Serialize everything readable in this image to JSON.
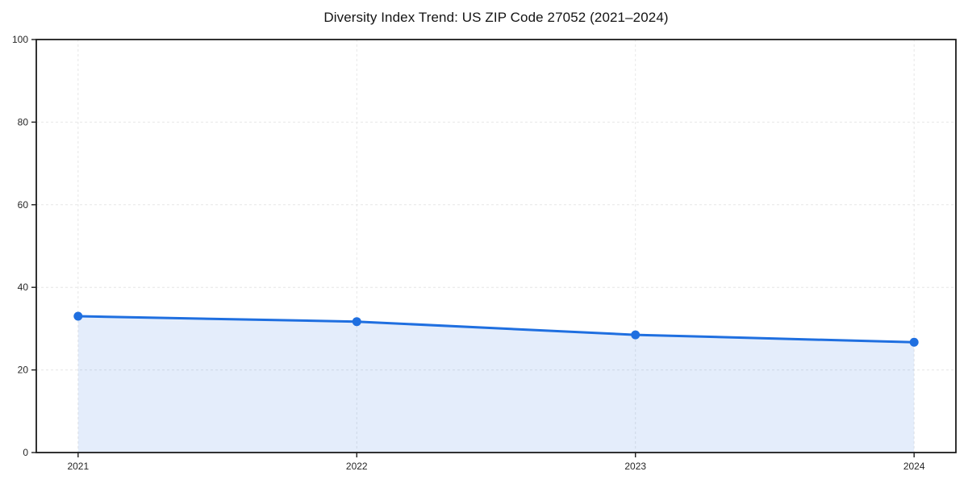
{
  "chart_data": {
    "type": "line",
    "title": "Diversity Index Trend: US ZIP Code 27052 (2021–2024)",
    "x_tick_labels": [
      "2021",
      "2022",
      "2023",
      "2024"
    ],
    "x": [
      2021,
      2022,
      2023,
      2024
    ],
    "values": [
      33.0,
      31.7,
      28.5,
      26.7
    ],
    "y_ticks": [
      0,
      20,
      40,
      60,
      80,
      100
    ],
    "y_tick_labels": [
      "0",
      "20",
      "40",
      "60",
      "80",
      "100"
    ],
    "ylim": [
      0,
      100
    ],
    "xlim": [
      2020.85,
      2024.15
    ],
    "xlabel": "",
    "ylabel": "",
    "legend": "none",
    "grid": {
      "visible": true,
      "style": "dashed",
      "color": "#e6e6e6"
    },
    "style": {
      "line_color": "#1f6fe0",
      "line_width": 3,
      "marker": "circle",
      "marker_radius": 5.5,
      "fill_color": "#1f6fe0",
      "fill_opacity": 0.12,
      "axis_color": "#1c1c1c",
      "background": "#ffffff"
    }
  }
}
